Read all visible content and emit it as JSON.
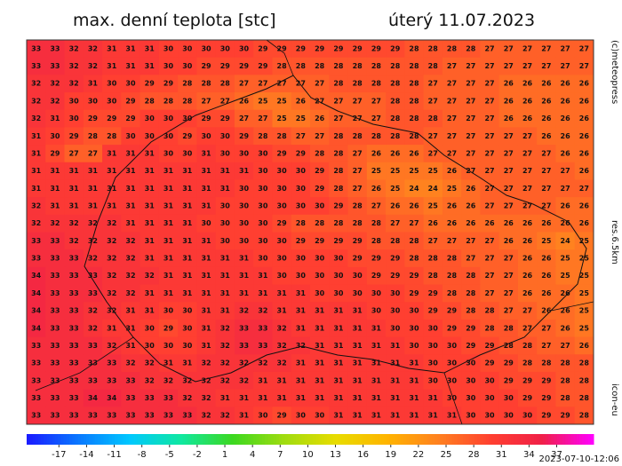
{
  "header": {
    "title": "max. denní teplota [stc]",
    "date": "úterý 11.07.2023"
  },
  "side_labels": [
    "(c)meteopress",
    "res.6.5km",
    "icon-eu"
  ],
  "timestamp": "2023-07-10-12:06",
  "grid": {
    "values": [
      [
        33,
        33,
        32,
        32,
        31,
        31,
        31,
        30,
        30,
        30,
        30,
        30,
        29,
        29,
        29,
        29,
        29,
        29,
        29,
        29,
        28,
        28,
        28,
        28,
        27,
        27,
        27,
        27,
        27,
        27
      ],
      [
        33,
        33,
        32,
        32,
        31,
        31,
        31,
        30,
        30,
        29,
        29,
        29,
        29,
        28,
        28,
        28,
        28,
        28,
        28,
        28,
        28,
        28,
        27,
        27,
        27,
        27,
        27,
        27,
        27,
        27
      ],
      [
        32,
        32,
        32,
        31,
        30,
        30,
        29,
        29,
        28,
        28,
        28,
        27,
        27,
        27,
        27,
        27,
        28,
        28,
        28,
        28,
        28,
        27,
        27,
        27,
        27,
        26,
        26,
        26,
        26,
        26
      ],
      [
        32,
        32,
        30,
        30,
        30,
        29,
        28,
        28,
        28,
        27,
        27,
        26,
        25,
        25,
        26,
        27,
        27,
        27,
        27,
        28,
        28,
        27,
        27,
        27,
        27,
        26,
        26,
        26,
        26,
        26
      ],
      [
        32,
        31,
        30,
        29,
        29,
        29,
        30,
        30,
        30,
        29,
        29,
        27,
        27,
        25,
        25,
        26,
        27,
        27,
        27,
        28,
        28,
        28,
        27,
        27,
        27,
        26,
        26,
        26,
        26,
        26
      ],
      [
        31,
        30,
        29,
        28,
        28,
        30,
        30,
        30,
        29,
        30,
        30,
        29,
        28,
        28,
        27,
        27,
        28,
        28,
        28,
        28,
        28,
        27,
        27,
        27,
        27,
        27,
        27,
        26,
        26,
        26
      ],
      [
        31,
        29,
        27,
        27,
        31,
        31,
        31,
        30,
        30,
        31,
        30,
        30,
        30,
        29,
        29,
        28,
        28,
        27,
        26,
        26,
        26,
        27,
        27,
        27,
        27,
        27,
        27,
        27,
        26,
        26
      ],
      [
        31,
        31,
        31,
        31,
        31,
        31,
        31,
        31,
        31,
        31,
        31,
        31,
        30,
        30,
        30,
        29,
        28,
        27,
        25,
        25,
        25,
        25,
        26,
        27,
        27,
        27,
        27,
        27,
        27,
        26
      ],
      [
        31,
        31,
        31,
        31,
        31,
        31,
        31,
        31,
        31,
        31,
        31,
        30,
        30,
        30,
        30,
        29,
        28,
        27,
        26,
        25,
        24,
        24,
        25,
        26,
        27,
        27,
        27,
        27,
        27,
        27
      ],
      [
        32,
        31,
        31,
        31,
        31,
        31,
        31,
        31,
        31,
        31,
        30,
        30,
        30,
        30,
        30,
        30,
        29,
        28,
        27,
        26,
        26,
        25,
        26,
        26,
        27,
        27,
        27,
        27,
        26,
        26
      ],
      [
        32,
        32,
        32,
        32,
        32,
        31,
        31,
        31,
        31,
        30,
        30,
        30,
        30,
        29,
        28,
        28,
        28,
        28,
        28,
        27,
        27,
        26,
        26,
        26,
        26,
        26,
        26,
        26,
        26,
        26
      ],
      [
        33,
        33,
        32,
        32,
        32,
        32,
        31,
        31,
        31,
        31,
        30,
        30,
        30,
        30,
        29,
        29,
        29,
        29,
        28,
        28,
        28,
        27,
        27,
        27,
        27,
        26,
        26,
        25,
        24,
        25
      ],
      [
        33,
        33,
        33,
        32,
        32,
        32,
        31,
        31,
        31,
        31,
        31,
        31,
        30,
        30,
        30,
        30,
        30,
        29,
        29,
        29,
        28,
        28,
        28,
        27,
        27,
        27,
        26,
        26,
        25,
        25
      ],
      [
        34,
        33,
        33,
        33,
        32,
        32,
        32,
        31,
        31,
        31,
        31,
        31,
        31,
        30,
        30,
        30,
        30,
        30,
        29,
        29,
        29,
        28,
        28,
        28,
        27,
        27,
        26,
        26,
        25,
        25
      ],
      [
        34,
        33,
        33,
        33,
        32,
        32,
        31,
        31,
        31,
        31,
        31,
        31,
        31,
        31,
        31,
        30,
        30,
        30,
        30,
        30,
        29,
        29,
        28,
        28,
        27,
        27,
        26,
        26,
        26,
        25
      ],
      [
        34,
        33,
        33,
        32,
        32,
        31,
        31,
        30,
        30,
        31,
        31,
        32,
        32,
        31,
        31,
        31,
        31,
        31,
        30,
        30,
        30,
        29,
        29,
        28,
        28,
        27,
        27,
        26,
        26,
        25
      ],
      [
        34,
        33,
        33,
        32,
        31,
        31,
        30,
        29,
        30,
        31,
        32,
        33,
        33,
        32,
        31,
        31,
        31,
        31,
        31,
        30,
        30,
        30,
        29,
        29,
        28,
        28,
        27,
        27,
        26,
        25
      ],
      [
        33,
        33,
        33,
        33,
        32,
        31,
        30,
        30,
        30,
        31,
        32,
        33,
        33,
        32,
        32,
        31,
        31,
        31,
        31,
        31,
        30,
        30,
        30,
        29,
        29,
        28,
        28,
        27,
        27,
        26
      ],
      [
        33,
        33,
        33,
        33,
        33,
        32,
        32,
        31,
        31,
        32,
        32,
        32,
        32,
        32,
        31,
        31,
        31,
        31,
        31,
        31,
        31,
        30,
        30,
        30,
        29,
        29,
        28,
        28,
        28,
        28
      ],
      [
        33,
        33,
        33,
        33,
        33,
        33,
        32,
        32,
        32,
        32,
        32,
        32,
        31,
        31,
        31,
        31,
        31,
        31,
        31,
        31,
        31,
        30,
        30,
        30,
        30,
        29,
        29,
        29,
        28,
        28
      ],
      [
        33,
        33,
        33,
        34,
        34,
        33,
        33,
        33,
        32,
        32,
        31,
        31,
        31,
        31,
        31,
        31,
        31,
        31,
        31,
        31,
        31,
        31,
        30,
        30,
        30,
        30,
        29,
        29,
        28,
        28
      ],
      [
        33,
        33,
        33,
        33,
        33,
        33,
        33,
        33,
        33,
        32,
        32,
        31,
        30,
        29,
        30,
        30,
        31,
        31,
        31,
        31,
        31,
        31,
        31,
        30,
        30,
        30,
        30,
        29,
        29,
        28
      ]
    ]
  },
  "colorbar": {
    "range": [
      -20.5,
      41
    ],
    "ticks": [
      -17,
      -14,
      -11,
      -8,
      -5,
      -2,
      1,
      4,
      7,
      10,
      13,
      16,
      19,
      22,
      25,
      28,
      31,
      34,
      37
    ],
    "colors": [
      "#1a1aff",
      "#0a78ff",
      "#00c8ff",
      "#10e8a0",
      "#3cd820",
      "#a0dc10",
      "#e8dc00",
      "#ffb400",
      "#ff8020",
      "#ff4030",
      "#f02048",
      "#ff00ff"
    ]
  }
}
